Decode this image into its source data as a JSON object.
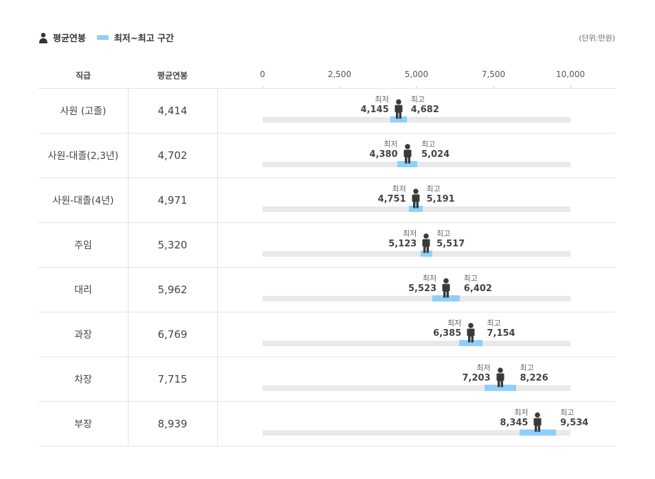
{
  "legend": {
    "avg_label": "평균연봉",
    "range_label": "최저~최고 구간",
    "avg_icon": "person-icon",
    "range_color": "#8fcfff"
  },
  "unit": "(단위:만원)",
  "headers": {
    "rank": "직급",
    "avg": "평균연봉"
  },
  "labels": {
    "min": "최저",
    "max": "최고"
  },
  "chart_data": {
    "type": "table",
    "axis": {
      "ticks": [
        "0",
        "2,500",
        "5,000",
        "7,500",
        "10,000"
      ],
      "tick_values": [
        0,
        2500,
        5000,
        7500,
        10000
      ],
      "xlim": [
        0,
        10000
      ]
    },
    "columns": [
      "직급",
      "평균연봉",
      "최저",
      "최고"
    ],
    "rows": [
      {
        "rank": "사원 (고졸)",
        "avg": 4414,
        "avg_text": "4,414",
        "min": 4145,
        "min_text": "4,145",
        "max": 4682,
        "max_text": "4,682"
      },
      {
        "rank": "사원-대졸(2,3년)",
        "avg": 4702,
        "avg_text": "4,702",
        "min": 4380,
        "min_text": "4,380",
        "max": 5024,
        "max_text": "5,024"
      },
      {
        "rank": "사원-대졸(4년)",
        "avg": 4971,
        "avg_text": "4,971",
        "min": 4751,
        "min_text": "4,751",
        "max": 5191,
        "max_text": "5,191"
      },
      {
        "rank": "주임",
        "avg": 5320,
        "avg_text": "5,320",
        "min": 5123,
        "min_text": "5,123",
        "max": 5517,
        "max_text": "5,517"
      },
      {
        "rank": "대리",
        "avg": 5962,
        "avg_text": "5,962",
        "min": 5523,
        "min_text": "5,523",
        "max": 6402,
        "max_text": "6,402"
      },
      {
        "rank": "과장",
        "avg": 6769,
        "avg_text": "6,769",
        "min": 6385,
        "min_text": "6,385",
        "max": 7154,
        "max_text": "7,154"
      },
      {
        "rank": "차장",
        "avg": 7715,
        "avg_text": "7,715",
        "min": 7203,
        "min_text": "7,203",
        "max": 8226,
        "max_text": "8,226"
      },
      {
        "rank": "부장",
        "avg": 8939,
        "avg_text": "8,939",
        "min": 8345,
        "min_text": "8,345",
        "max": 9534,
        "max_text": "9,534"
      }
    ]
  }
}
